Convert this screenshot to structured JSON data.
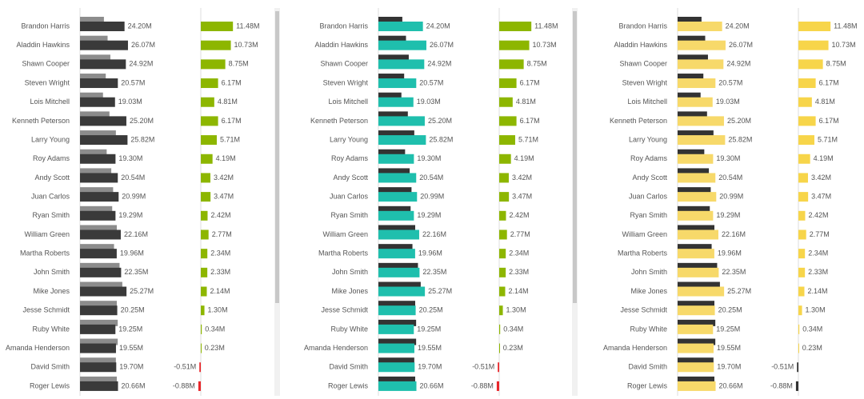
{
  "panels": [
    {
      "actual_color": "#3a3a3a",
      "target_color": "#8c8c8c",
      "variance_color": "#8db600",
      "negative_color": "#e8262a"
    },
    {
      "actual_color": "#1fbfad",
      "target_color": "#333333",
      "variance_color": "#8db600",
      "negative_color": "#e8262a"
    },
    {
      "actual_color": "#f7d96a",
      "target_color": "#333333",
      "variance_color": "#f7d54a",
      "negative_color": "#333333"
    }
  ],
  "rows": [
    {
      "name": "Brandon Harris",
      "value": 24.2,
      "value_label": "24.20M",
      "target": 13,
      "variance": 11.48,
      "variance_label": "11.48M"
    },
    {
      "name": "Aladdin Hawkins",
      "value": 26.07,
      "value_label": "26.07M",
      "target": 15,
      "variance": 10.73,
      "variance_label": "10.73M"
    },
    {
      "name": "Shawn Cooper",
      "value": 24.92,
      "value_label": "24.92M",
      "target": 16.5,
      "variance": 8.75,
      "variance_label": "8.75M"
    },
    {
      "name": "Steven Wright",
      "value": 20.57,
      "value_label": "20.57M",
      "target": 14,
      "variance": 6.17,
      "variance_label": "6.17M"
    },
    {
      "name": "Lois Mitchell",
      "value": 19.03,
      "value_label": "19.03M",
      "target": 12.5,
      "variance": 4.81,
      "variance_label": "4.81M"
    },
    {
      "name": "Kenneth Peterson",
      "value": 25.2,
      "value_label": "25.20M",
      "target": 16,
      "variance": 6.17,
      "variance_label": "6.17M"
    },
    {
      "name": "Larry Young",
      "value": 25.82,
      "value_label": "25.82M",
      "target": 19.5,
      "variance": 5.71,
      "variance_label": "5.71M"
    },
    {
      "name": "Roy Adams",
      "value": 19.3,
      "value_label": "19.30M",
      "target": 14.5,
      "variance": 4.19,
      "variance_label": "4.19M"
    },
    {
      "name": "Andy Scott",
      "value": 20.54,
      "value_label": "20.54M",
      "target": 17,
      "variance": 3.42,
      "variance_label": "3.42M"
    },
    {
      "name": "Juan Carlos",
      "value": 20.99,
      "value_label": "20.99M",
      "target": 18,
      "variance": 3.47,
      "variance_label": "3.47M"
    },
    {
      "name": "Ryan Smith",
      "value": 19.29,
      "value_label": "19.29M",
      "target": 17.5,
      "variance": 2.42,
      "variance_label": "2.42M"
    },
    {
      "name": "William Green",
      "value": 22.16,
      "value_label": "22.16M",
      "target": 20,
      "variance": 2.77,
      "variance_label": "2.77M"
    },
    {
      "name": "Martha Roberts",
      "value": 19.96,
      "value_label": "19.96M",
      "target": 18.5,
      "variance": 2.34,
      "variance_label": "2.34M"
    },
    {
      "name": "John Smith",
      "value": 22.35,
      "value_label": "22.35M",
      "target": 21.5,
      "variance": 2.33,
      "variance_label": "2.33M"
    },
    {
      "name": "Mike Jones",
      "value": 25.27,
      "value_label": "25.27M",
      "target": 23,
      "variance": 2.14,
      "variance_label": "2.14M"
    },
    {
      "name": "Jesse Schmidt",
      "value": 20.25,
      "value_label": "20.25M",
      "target": 20,
      "variance": 1.3,
      "variance_label": "1.30M"
    },
    {
      "name": "Ruby White",
      "value": 19.25,
      "value_label": "19.25M",
      "target": 20.5,
      "variance": 0.34,
      "variance_label": "0.34M"
    },
    {
      "name": "Amanda Henderson",
      "value": 19.55,
      "value_label": "19.55M",
      "target": 20.5,
      "variance": 0.23,
      "variance_label": "0.23M"
    },
    {
      "name": "David Smith",
      "value": 19.7,
      "value_label": "19.70M",
      "target": 19.5,
      "variance": -0.51,
      "variance_label": "-0.51M"
    },
    {
      "name": "Roger Lewis",
      "value": 20.66,
      "value_label": "20.66M",
      "target": 20,
      "variance": -0.88,
      "variance_label": "-0.88M"
    }
  ]
}
